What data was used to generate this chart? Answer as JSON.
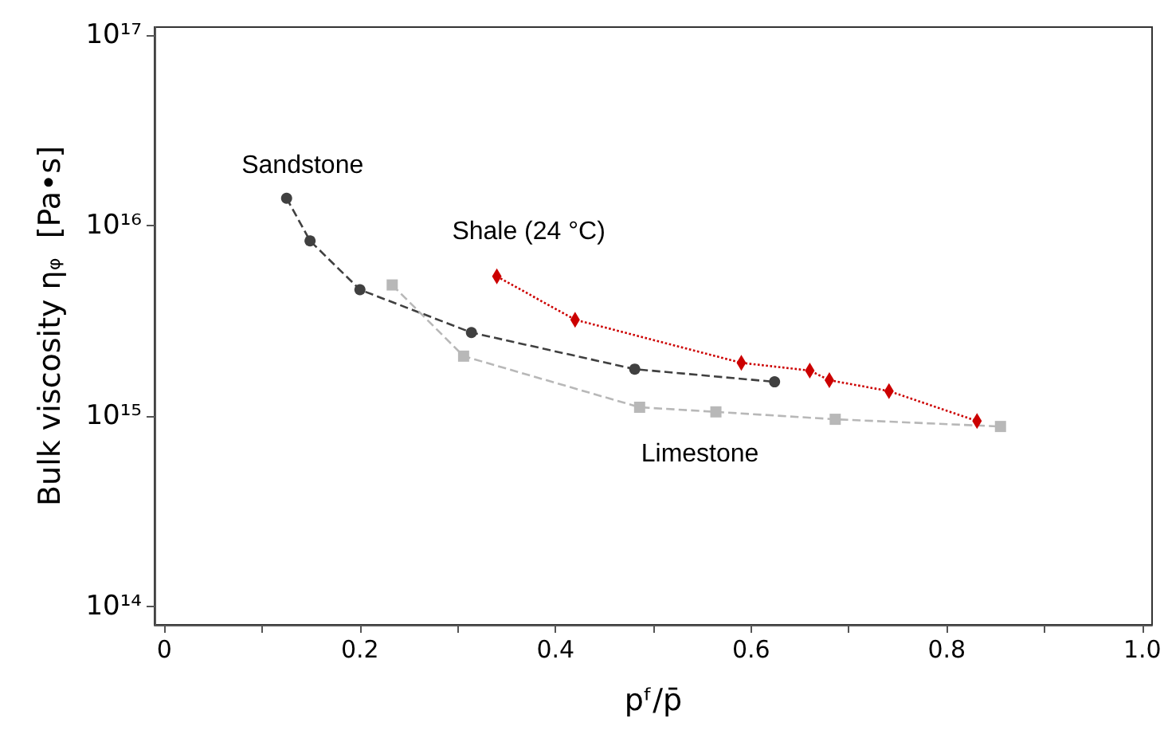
{
  "chart_data": {
    "type": "line",
    "xlabel": "pᶠ/p̄",
    "ylabel": "Bulk viscosity ηᵩ  [Pa•s]",
    "log": "y",
    "grid": false,
    "legend": false,
    "xlim": [
      -0.01,
      1.01
    ],
    "ylim": [
      80000000000000.0,
      1.1e+17
    ],
    "xticks": [
      0,
      {
        "value": 0.1,
        "label": null
      },
      {
        "value": 0.2,
        "label": "0.2"
      },
      {
        "value": 0.3,
        "label": null
      },
      {
        "value": 0.4,
        "label": "0.4"
      },
      {
        "value": 0.5,
        "label": null
      },
      {
        "value": 0.6,
        "label": "0.6"
      },
      {
        "value": 0.7,
        "label": null
      },
      {
        "value": 0.8,
        "label": "0.8"
      },
      {
        "value": 0.9,
        "label": null
      },
      {
        "value": 1,
        "label": "1.0"
      }
    ],
    "yticks": [
      {
        "value": 100000000000000.0,
        "label": "10¹⁴"
      },
      {
        "value": 1000000000000000.0,
        "label": "10¹⁵"
      },
      {
        "value": 1e+16,
        "label": "10¹⁶"
      },
      {
        "value": 1e+17,
        "label": "10¹⁷"
      }
    ],
    "series": [
      {
        "name": "Sandstone",
        "color": "#404040",
        "marker": "circle",
        "line_style": "dashed",
        "x": [
          0.125,
          0.149,
          0.2,
          0.314,
          0.481,
          0.624
        ],
        "values": [
          1.39e+16,
          8300000000000000.0,
          4600000000000000.0,
          2740000000000000.0,
          1760000000000000.0,
          1510000000000000.0
        ]
      },
      {
        "name": "Limestone",
        "color": "#b8b8b8",
        "marker": "square",
        "line_style": "dashed",
        "x": [
          0.233,
          0.306,
          0.486,
          0.564,
          0.686,
          0.855
        ],
        "values": [
          4870000000000000.0,
          2060000000000000.0,
          1110000000000000.0,
          1050000000000000.0,
          960000000000000.0,
          880000000000000.0
        ]
      },
      {
        "name": "Shale (24 °C)",
        "color": "#cc0000",
        "marker": "diamond",
        "line_style": "dotted",
        "x": [
          0.34,
          0.42,
          0.59,
          0.66,
          0.68,
          0.741,
          0.831
        ],
        "values": [
          5400000000000000.0,
          3200000000000000.0,
          1900000000000000.0,
          1730000000000000.0,
          1540000000000000.0,
          1350000000000000.0,
          940000000000000.0
        ]
      }
    ]
  }
}
